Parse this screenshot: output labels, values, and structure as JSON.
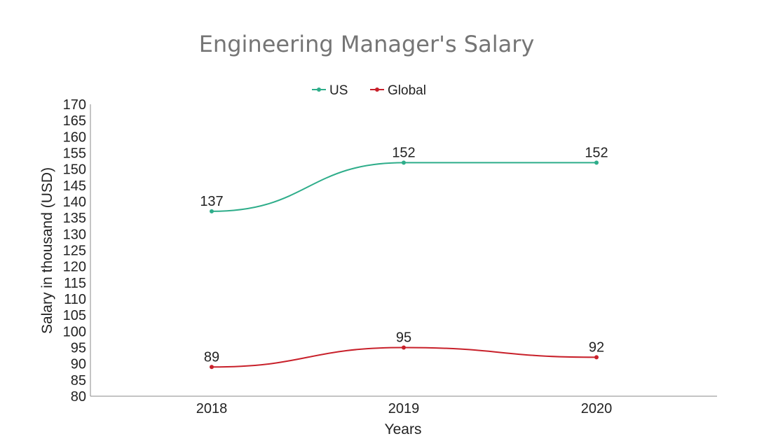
{
  "chart_data": {
    "type": "line",
    "title": "Engineering Manager's Salary",
    "xlabel": "Years",
    "ylabel": "Salary in thousand (USD)",
    "categories": [
      "2018",
      "2019",
      "2020"
    ],
    "ylim": [
      80,
      170
    ],
    "ytick_step": 5,
    "grid": false,
    "legend_position": "top-center",
    "curve": "smooth",
    "series": [
      {
        "name": "US",
        "values": [
          137,
          152,
          152
        ],
        "color": "#2ead8a"
      },
      {
        "name": "Global",
        "values": [
          89,
          95,
          92
        ],
        "color": "#c8202a"
      }
    ]
  }
}
